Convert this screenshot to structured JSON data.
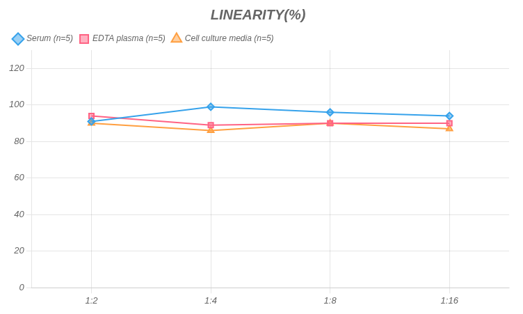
{
  "chart_data": {
    "type": "line",
    "title": "LINEARITY(%)",
    "categories": [
      "1:2",
      "1:4",
      "1:8",
      "1:16"
    ],
    "series": [
      {
        "name": "Serum (n=5)",
        "values": [
          91,
          99,
          96,
          94
        ],
        "marker": "diamond"
      },
      {
        "name": "EDTA plasma (n=5)",
        "values": [
          94,
          89,
          90,
          90
        ],
        "marker": "square"
      },
      {
        "name": "Cell culture media (n=5)",
        "values": [
          90,
          86,
          90,
          87
        ],
        "marker": "triangle"
      }
    ],
    "ylim": [
      0,
      130
    ],
    "yticks": [
      0,
      20,
      40,
      60,
      80,
      100,
      120
    ],
    "grid": true,
    "legend": "top-left"
  }
}
